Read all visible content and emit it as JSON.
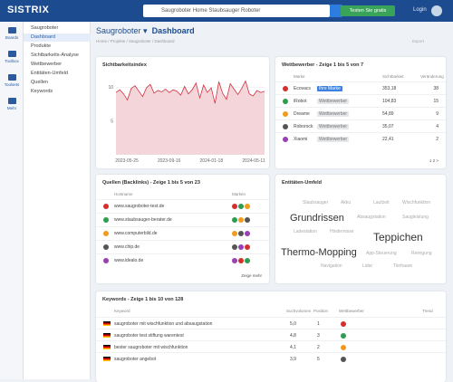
{
  "header": {
    "logo": "SISTRIX",
    "search": "Saugroboter Home Staubsauger Roboter",
    "trial": "Testen Sie gratis",
    "login": "Login"
  },
  "nav": [
    "Boards",
    "Toolbox",
    "Toolsets",
    "Mehr"
  ],
  "menu": [
    "Saugroboter",
    "Dashboard",
    "Produkte",
    "Sichtbarkeits-Analyse",
    "Wettbewerber",
    "Entitäten-Umfeld",
    "Quellen",
    "Keywords"
  ],
  "page": {
    "project": "Saugroboter",
    "title": "Dashboard",
    "breadcrumb": "Home / Projekte / Saugroboter / Dashboard",
    "export": "Export"
  },
  "visibility": {
    "title": "Sichtbarkeitsindex",
    "values": [
      9.2,
      9.6,
      9.0,
      8.1,
      9.8,
      10.2,
      9.4,
      8.6,
      9.9,
      10.4,
      9.1,
      9.5,
      9.3,
      9.7,
      9.2,
      9.6,
      9.4,
      8.8,
      10.1,
      9.0,
      9.6,
      10.6,
      8.4,
      10.3,
      9.2,
      9.9,
      7.6,
      10.8,
      9.1,
      8.2,
      10.5,
      9.7,
      8.9,
      9.8,
      10.9,
      9.0,
      8.7,
      9.5,
      9.2,
      9.4
    ],
    "ylim": [
      0,
      11.5
    ],
    "yticks": [
      5,
      10
    ],
    "xlabels": [
      "2023-05-25",
      "2023-09-16",
      "2024-01-18",
      "2024-05-11"
    ]
  },
  "competitors": {
    "title": "Wettbewerber - Zeige 1 bis 5 von 7",
    "columns": [
      "Marke",
      "Sichtbarkeit",
      "Veränderung"
    ],
    "rows": [
      {
        "name": "Ecovacs",
        "tag": "Ihre Marke",
        "value": "353,18",
        "change": "38"
      },
      {
        "name": "iRobot",
        "tag": "Wettbewerber",
        "value": "104,83",
        "change": "15"
      },
      {
        "name": "Dreame",
        "tag": "Wettbewerber",
        "value": "54,89",
        "change": "9"
      },
      {
        "name": "Roborock",
        "tag": "Wettbewerber",
        "value": "35,07",
        "change": "4"
      },
      {
        "name": "Xiaomi",
        "tag": "Wettbewerber",
        "value": "22,41",
        "change": "2"
      }
    ],
    "pager": "1  2  >"
  },
  "sources": {
    "title": "Quellen (Backlinks) - Zeige 1 bis 5 von 23",
    "columns": [
      "Hostname",
      "Marken"
    ],
    "rows": [
      "www.saugroboter-test.de",
      "www.staubsauger-berater.de",
      "www.computerbild.de",
      "www.chip.de",
      "www.idealo.de"
    ],
    "more": "Zeige mehr"
  },
  "entities": {
    "title": "Entitäten-Umfeld",
    "words": [
      "Staubsauger",
      "Akku",
      "Laufzeit",
      "Wischfunktion",
      "Grundrissen",
      "Absaugstation",
      "Saugleistung",
      "Ladestation",
      "Teppichen",
      "Hindernisse",
      "Thermo-Mopping",
      "App-Steuerung",
      "Reinigung",
      "Navigation",
      "Lidar",
      "Tierhaare"
    ]
  },
  "keywords": {
    "title": "Keywords - Zeige 1 bis 10 von 128",
    "columns": [
      "Keyword",
      "Suchvolumen",
      "Position",
      "Wettbewerber",
      "Trend"
    ],
    "rows": [
      {
        "keyword": "saugroboter mit wischfunktion und absaugstation",
        "volume": "5,0",
        "pos": "1"
      },
      {
        "keyword": "saugroboter test stiftung warentest",
        "volume": "4,8",
        "pos": "3"
      },
      {
        "keyword": "bester saugroboter mit wischfunktion",
        "volume": "4,1",
        "pos": "2"
      },
      {
        "keyword": "saugroboter angebot",
        "volume": "3,9",
        "pos": "5"
      }
    ]
  }
}
